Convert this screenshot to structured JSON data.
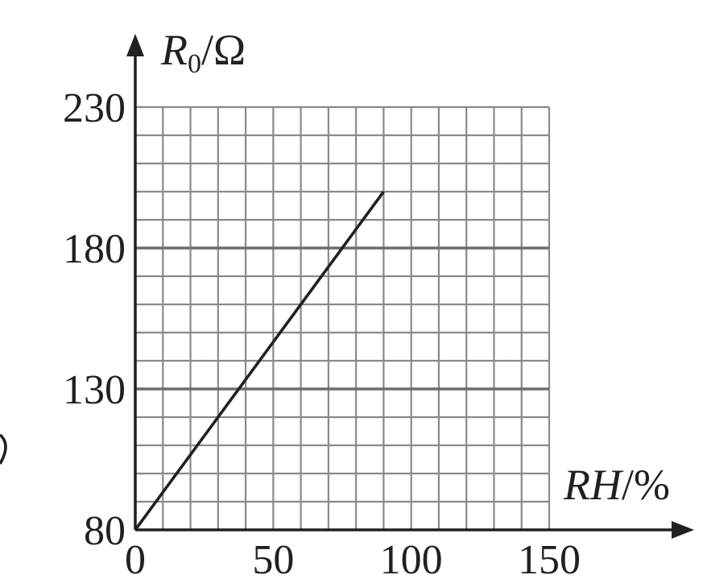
{
  "chart_data": {
    "type": "line",
    "title": "",
    "xlabel": {
      "main": "RH",
      "unit": "/%"
    },
    "ylabel": {
      "main": "R",
      "sub": "0",
      "unit": "/Ω"
    },
    "xlim": [
      0,
      150
    ],
    "ylim": [
      80,
      230
    ],
    "x_ticks": [
      "0",
      "50",
      "100",
      "150"
    ],
    "y_ticks": [
      "80",
      "130",
      "180",
      "230"
    ],
    "grid": true,
    "minor_grid_step": {
      "x": 10,
      "y": 10
    },
    "major_grid_y": [
      130,
      180
    ],
    "series": [
      {
        "x": [
          0,
          90
        ],
        "y": [
          80,
          200
        ]
      }
    ],
    "colors": {
      "line": "#231f20",
      "grid": "#8a8a8a",
      "text": "#231f20"
    }
  }
}
